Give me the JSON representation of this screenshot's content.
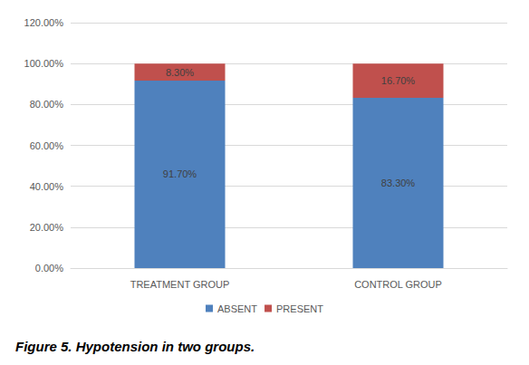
{
  "chart_data": {
    "type": "bar",
    "title": "Figure 5. Hypotension in two groups.",
    "categories": [
      "TREATMENT GROUP",
      "CONTROL GROUP"
    ],
    "stacked": true,
    "data_labels": true,
    "legend": "bottom",
    "grid": true,
    "series": [
      {
        "name": "ABSENT",
        "color": "#4f81bd",
        "values": [
          91.7,
          83.3
        ],
        "value_labels": [
          "91.70%",
          "83.30%"
        ]
      },
      {
        "name": "PRESENT",
        "color": "#c0504d",
        "values": [
          8.3,
          16.7
        ],
        "value_labels": [
          "8.30%",
          "16.70%"
        ]
      }
    ],
    "ylim": [
      0,
      120
    ],
    "yticks": [
      {
        "value": 0,
        "label": "0.00%"
      },
      {
        "value": 20,
        "label": "20.00%"
      },
      {
        "value": 40,
        "label": "40.00%"
      },
      {
        "value": 60,
        "label": "60.00%"
      },
      {
        "value": 80,
        "label": "80.00%"
      },
      {
        "value": 100,
        "label": "100.00%"
      },
      {
        "value": 120,
        "label": "120.00%"
      }
    ]
  }
}
